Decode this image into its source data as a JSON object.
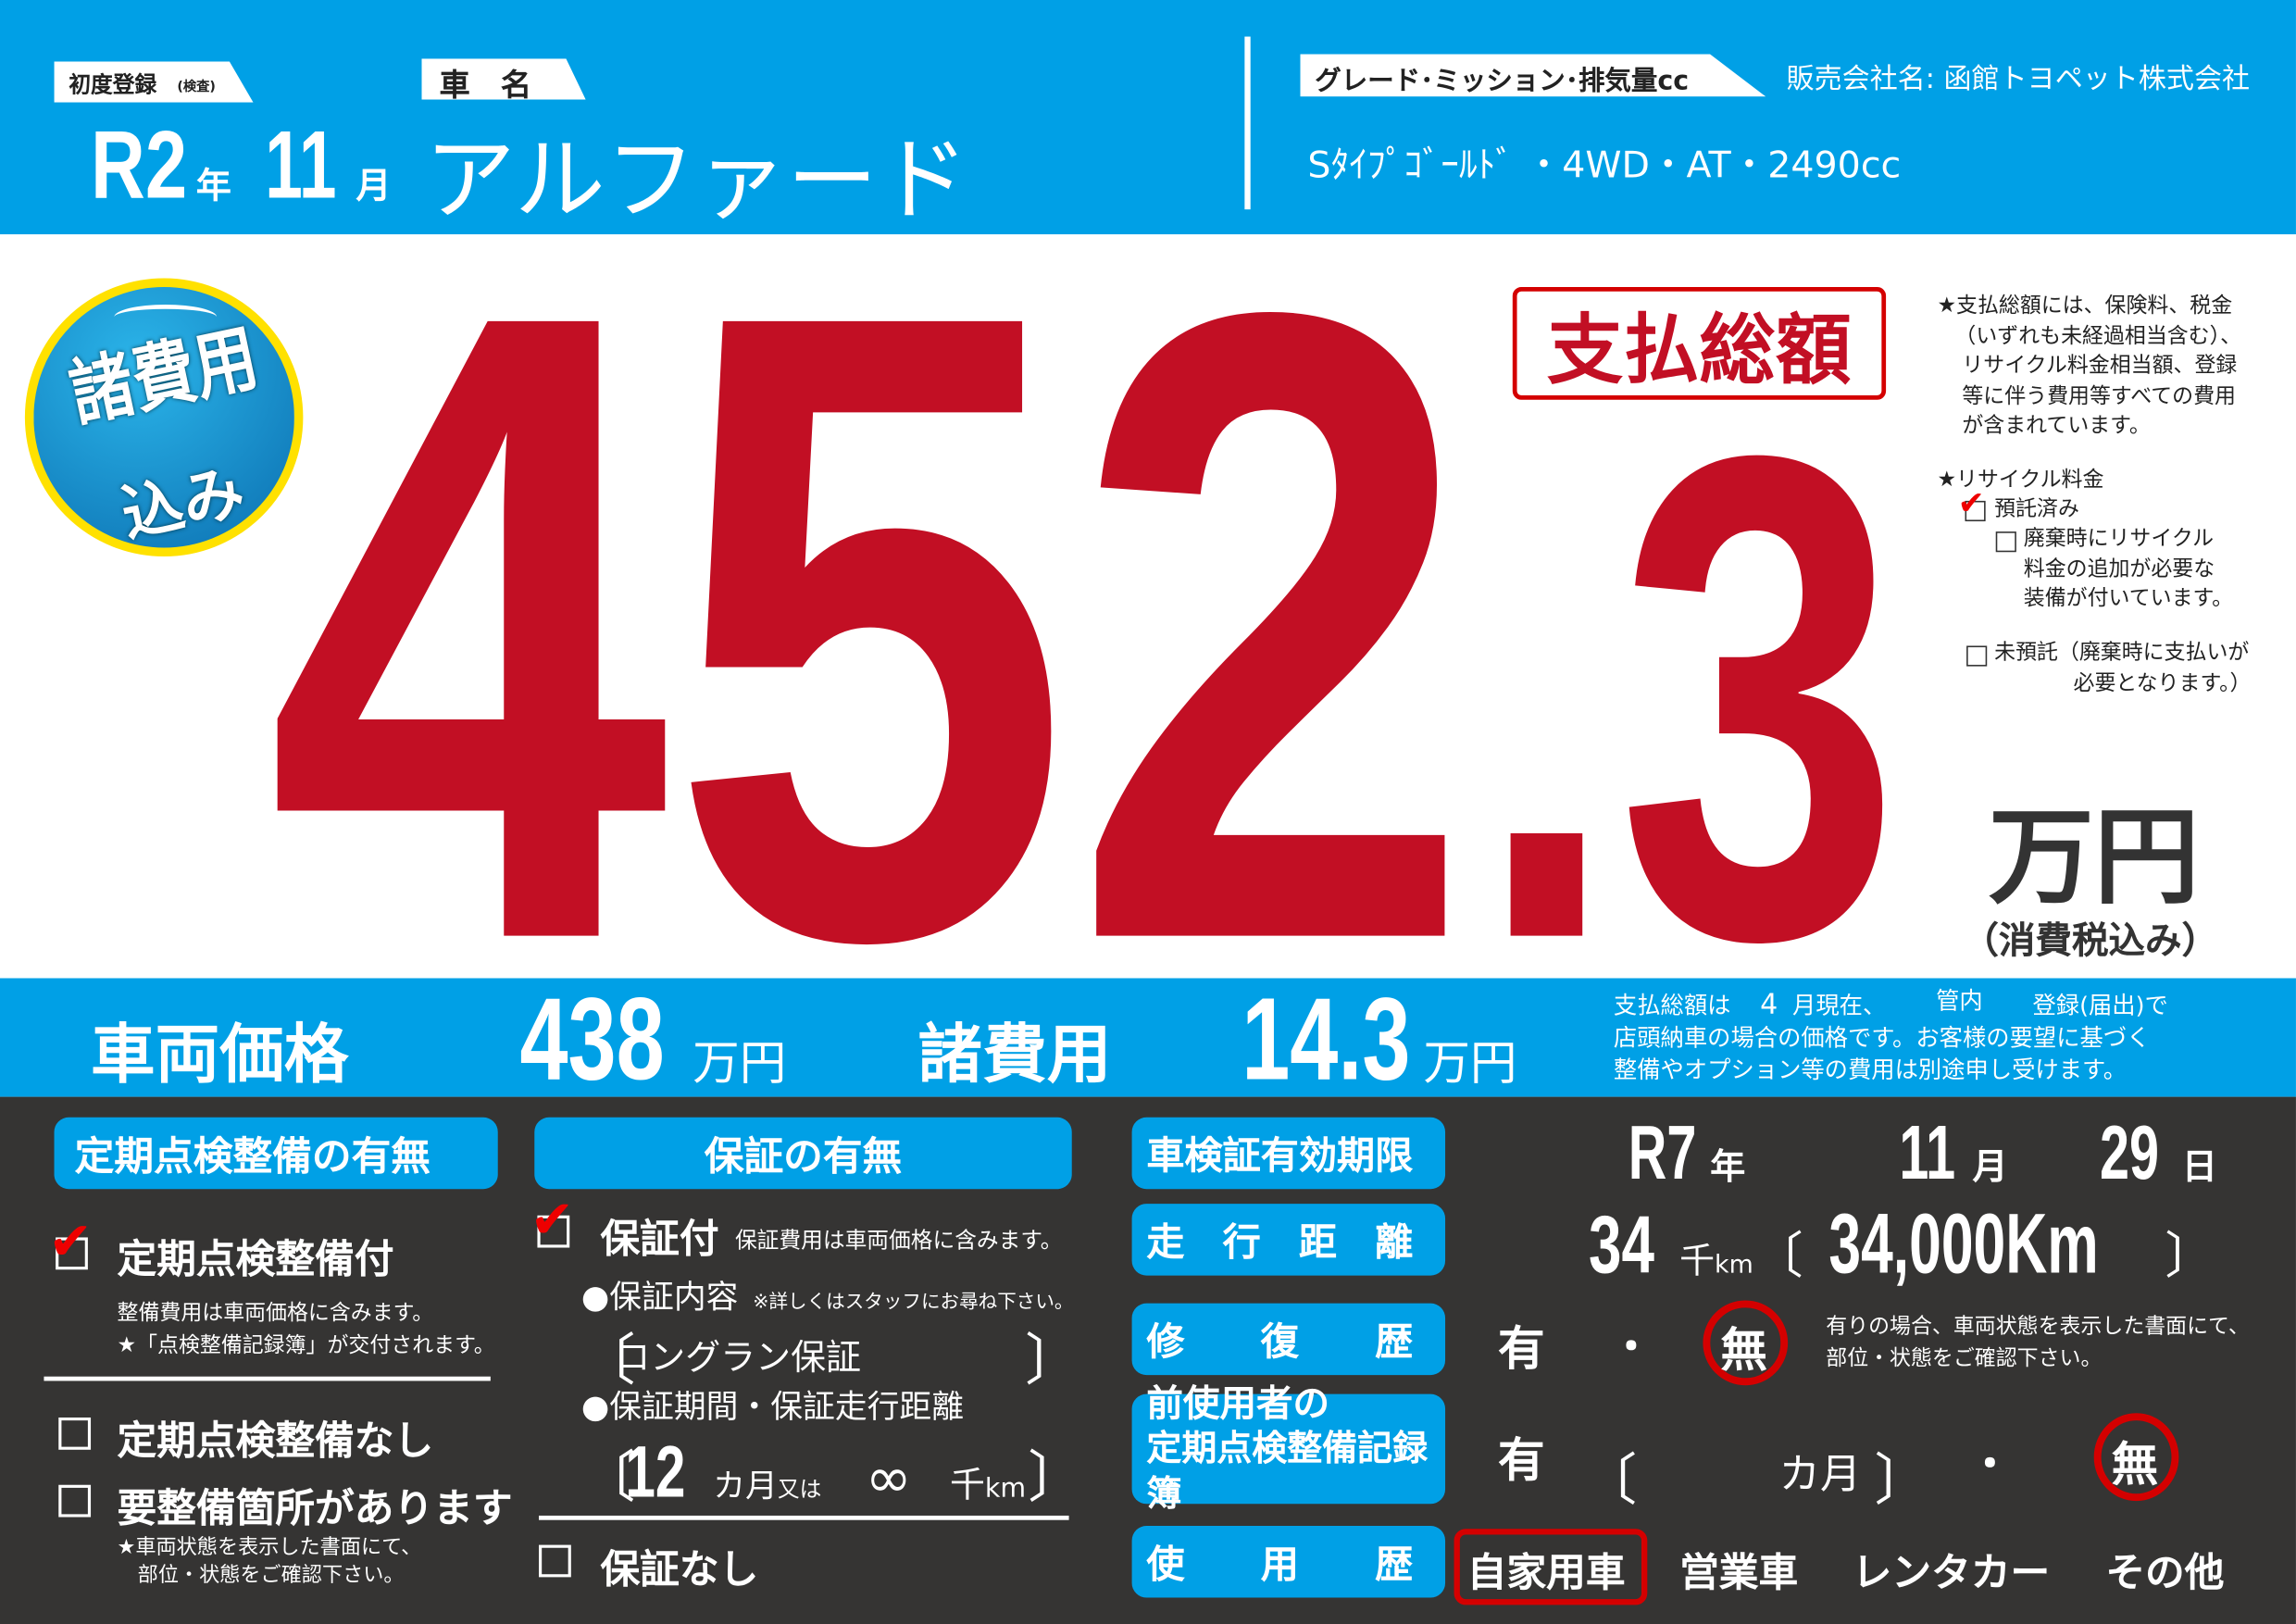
{
  "colors": {
    "accent_blue": "#00a0e6",
    "price_red": "#c20f24",
    "dark_bg": "#353433",
    "highlight_red": "#d40000",
    "badge_yellow": "#ffe100"
  },
  "header": {
    "first_reg_label": "初度登録",
    "first_reg_sub": "(検査)",
    "year": "R2",
    "year_unit": "年",
    "month": "11",
    "month_unit": "月",
    "car_name_label": "車　名",
    "car_name": "アルファード",
    "grade_label": "グレード･ミッション･排気量cc",
    "dealer_label": "販売会社名:",
    "dealer": "函館トヨペット株式会社",
    "grade": "Sﾀｲﾌﾟｺﾞｰﾙﾄﾞ ・4WD・AT・2490cc"
  },
  "badge": {
    "line1": "諸費用",
    "line2": "込み"
  },
  "price": {
    "total_label": "支払総額",
    "integer": "452",
    "decimal": ".3",
    "unit": "万円",
    "tax_note": "（消費税込み）",
    "notes": [
      "★支払総額には、保険料、税金",
      "（いずれも未経過相当含む）、",
      "リサイクル料金相当額、登録",
      "等に伴う費用等すべての費用",
      "が含まれています。"
    ],
    "recycle_title": "★リサイクル料金",
    "recycle_options": [
      {
        "label": "預託済み",
        "checked": true
      },
      {
        "label": "廃棄時にリサイクル",
        "extra": [
          "料金の追加が必要な",
          "装備が付いています。"
        ],
        "checked": false
      },
      {
        "label": "未預託（廃棄時に支払いが",
        "extra": [
          "必要となります。）"
        ],
        "checked": false
      }
    ]
  },
  "strip": {
    "vehicle_label": "車両価格",
    "vehicle_price": "438",
    "vehicle_unit": "万円",
    "fees_label": "諸費用",
    "fees": "14.3",
    "fees_unit": "万円",
    "note_l1a": "支払総額は",
    "note_month": "4",
    "note_l1b": "月現在、",
    "note_area": "管内",
    "note_l1c": "登録(届出)で",
    "note_l2": "店頭納車の場合の価格です。お客様の要望に基づく",
    "note_l3": "整備やオプション等の費用は別途申し受けます。"
  },
  "inspection": {
    "title": "定期点検整備の有無",
    "with": {
      "label": "定期点検整備付",
      "checked": true,
      "notes": [
        "整備費用は車両価格に含みます。",
        "★「点検整備記録簿」が交付されます。"
      ]
    },
    "without": {
      "label": "定期点検整備なし",
      "checked": false
    },
    "needs": {
      "label": "要整備箇所があります",
      "checked": false,
      "notes": [
        "★車両状態を表示した書面にて、",
        "部位・状態をご確認下さい。"
      ]
    }
  },
  "warranty": {
    "title": "保証の有無",
    "with": {
      "label": "保証付",
      "checked": true,
      "note": "保証費用は車両価格に含みます。"
    },
    "content_label": "●保証内容",
    "content_note": "※詳しくはスタッフにお尋ね下さい。",
    "content": "ロングラン保証",
    "period_label": "●保証期間・保証走行距離",
    "months": "12",
    "months_unit": "カ月",
    "or": "又は",
    "distance": "∞",
    "distance_unit": "千",
    "km": "km",
    "without": {
      "label": "保証なし",
      "checked": false
    }
  },
  "details": {
    "shaken": {
      "label": "車検証有効期限",
      "year": "R7",
      "year_unit": "年",
      "month": "11",
      "month_unit": "月",
      "day": "29",
      "day_unit": "日"
    },
    "mileage": {
      "label": "走　行　距　離",
      "thousand_km": "34",
      "unit_k": "千",
      "unit_km": "km",
      "exact": "34,000Km"
    },
    "repair": {
      "label": "修　　復　　歴",
      "yes": "有",
      "dot": "・",
      "no": "無",
      "selected": "無",
      "note": [
        "有りの場合、車両状態を表示した書面にて、",
        "部位・状態をご確認下さい。"
      ]
    },
    "records": {
      "label1": "前使用者の",
      "label2": "定期点検整備記録簿",
      "yes": "有",
      "months_unit": "カ月",
      "dot": "・",
      "no": "無",
      "selected": "無"
    },
    "usage": {
      "label": "使　　用　　歴",
      "options": [
        "自家用車",
        "営業車",
        "レンタカー",
        "その他"
      ],
      "selected": "自家用車"
    }
  }
}
